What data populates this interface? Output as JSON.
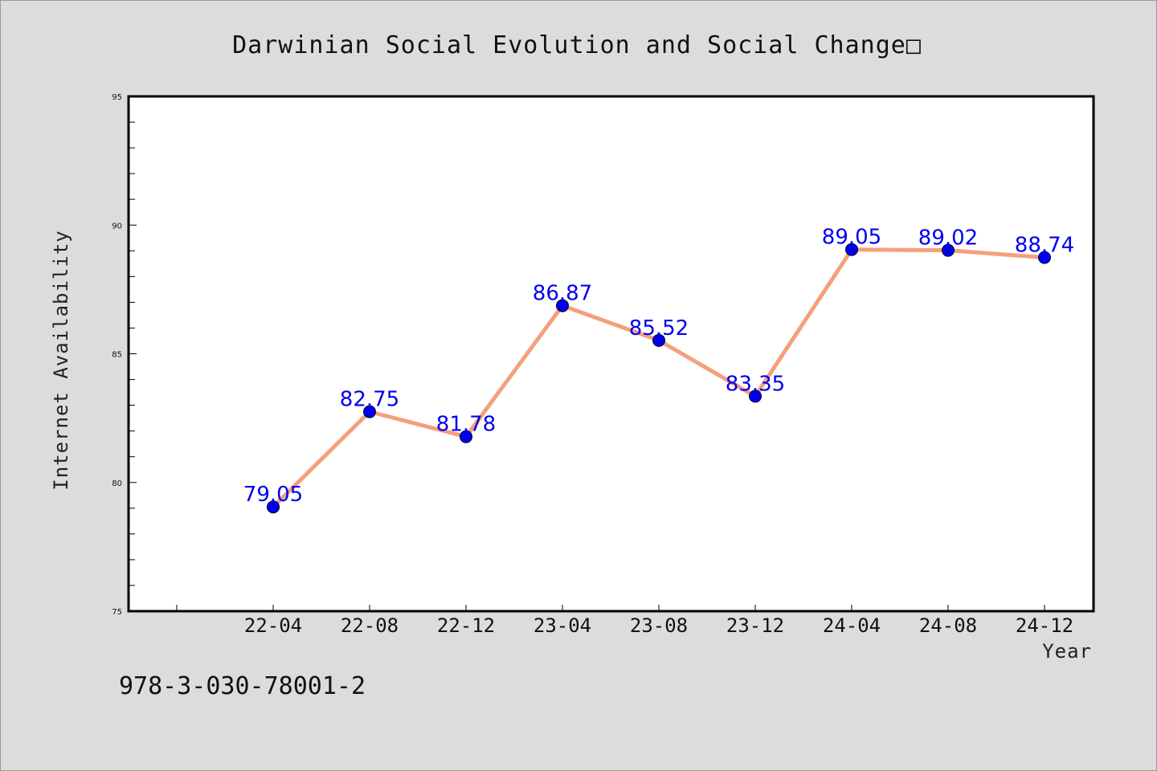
{
  "chart_data": {
    "type": "line",
    "title": "Darwinian Social Evolution and Social Change□",
    "xlabel": "Year",
    "ylabel": "Internet Availability",
    "categories": [
      "22-04",
      "22-08",
      "22-12",
      "23-04",
      "23-08",
      "23-12",
      "24-04",
      "24-08",
      "24-12"
    ],
    "series": [
      {
        "values": [
          79.05,
          82.75,
          81.78,
          86.87,
          85.52,
          83.35,
          89.05,
          89.02,
          88.74
        ]
      }
    ],
    "data_labels": [
      "79.05",
      "82.75",
      "81.78",
      "86.87",
      "85.52",
      "83.35",
      "89.05",
      "89.02",
      "88.74"
    ],
    "y_ticks": [
      75,
      80,
      85,
      90,
      95
    ],
    "y_tick_labels": [
      "75",
      "80",
      "85",
      "90",
      "95"
    ],
    "ylim": [
      75,
      95
    ],
    "grid": false,
    "legend": "none",
    "colors": {
      "line": "#f4a07c",
      "marker": "#0000ee",
      "label": "#0000ee"
    }
  },
  "footer": {
    "code": "978-3-030-78001-2"
  }
}
